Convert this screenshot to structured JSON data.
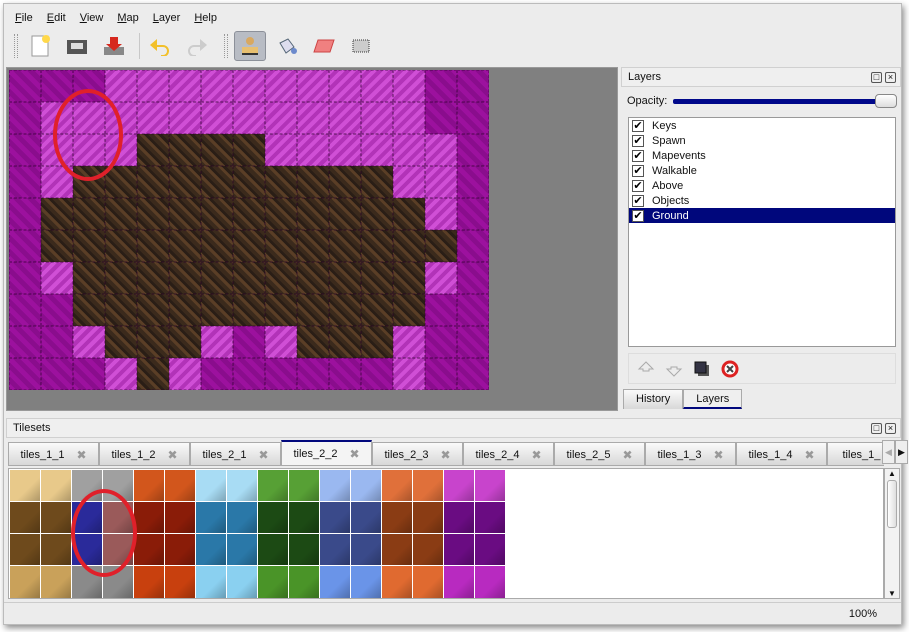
{
  "menu": [
    "File",
    "Edit",
    "View",
    "Map",
    "Layer",
    "Help"
  ],
  "toolbar": {
    "icons": [
      "new-file-icon",
      "open-icon",
      "save-icon",
      "undo-icon",
      "redo-icon",
      "stamp-brush-icon",
      "bucket-fill-icon",
      "eraser-icon",
      "rect-select-icon"
    ],
    "active": "stamp-brush-icon"
  },
  "map": {
    "rows": [
      "DDDLLLLLLLLLLDD",
      "DLLLLLLLLLLLLDD",
      "DLLLBBBBLLLLLLD",
      "DLBBBBBBBBBBLLD",
      "DBBBBBBBBBBBBLD",
      "DBBBBBBBBBBBBBD",
      "DLBBBBBBBBBBBLD",
      "DDBBBBBBBBBBBDD",
      "DDLBBBLDLBBBLDD",
      "DDDLBLDDDDDDLDD"
    ]
  },
  "layers_panel": {
    "title": "Layers",
    "opacity_label": "Opacity:",
    "opacity_value": 100,
    "layers": [
      {
        "name": "Keys",
        "visible": true
      },
      {
        "name": "Spawn",
        "visible": true
      },
      {
        "name": "Mapevents",
        "visible": true
      },
      {
        "name": "Walkable",
        "visible": true
      },
      {
        "name": "Above",
        "visible": true
      },
      {
        "name": "Objects",
        "visible": true
      },
      {
        "name": "Ground",
        "visible": true,
        "selected": true
      }
    ],
    "buttons": [
      "move-layer-up-icon",
      "move-layer-down-icon",
      "duplicate-layer-icon",
      "delete-layer-icon"
    ],
    "tabs": [
      {
        "label": "History"
      },
      {
        "label": "Layers",
        "active": true
      }
    ]
  },
  "tilesets": {
    "title": "Tilesets",
    "tabs": [
      "tiles_1_1",
      "tiles_1_2",
      "tiles_2_1",
      "tiles_2_2",
      "tiles_2_3",
      "tiles_2_4",
      "tiles_2_5",
      "tiles_1_3",
      "tiles_1_4",
      "tiles_1_"
    ],
    "active_tab": "tiles_2_2",
    "palette": [
      "#c9a15a",
      "#8a8a8a",
      "#b8380e",
      "#7cc3e6",
      "#3e7a22",
      "#5a7fd6",
      "#c0521e",
      "#9b2aa8"
    ],
    "row_shade": [
      "#e8c98a,#a0a0a0,#d2561c,#a8dcf4,#57a035,#9ab8f0,#e0703a,#c844cc",
      "#6e4a1c,#2a2a8a,#8a1c08,#2a78a8,#1c4a14,#3a4a8a,#8a3c14,#6a0c82",
      "#6e4a1c,#2a2a8a,#8a1c08,#2a78a8,#1c4a14,#3a4a8a,#8a3c14,#6a0c82",
      "#c9a15a,#8a8a8a,#c8400e,#8ad0f0,#4a9428,#6a94e8,#e06a30,#b82ac0"
    ],
    "selected_tile_color": "#2a2a9a"
  },
  "status": {
    "zoom": "100%"
  },
  "colors": {
    "selection": "#00077c",
    "highlight": "#e0202a"
  }
}
